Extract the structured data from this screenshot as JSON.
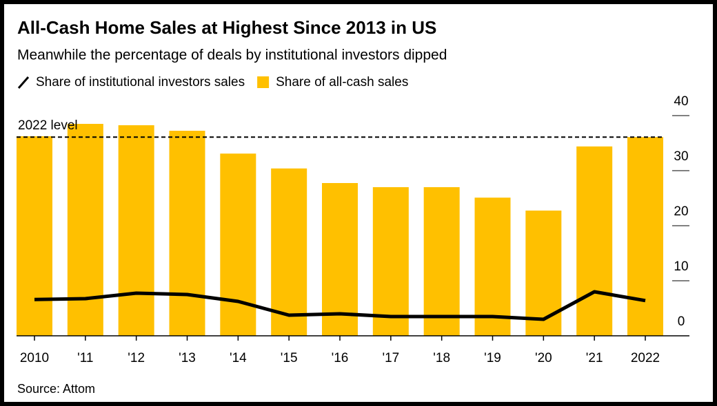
{
  "chart_data": {
    "type": "bar",
    "title": "All-Cash Home Sales at Highest Since 2013 in US",
    "subtitle": "Meanwhile the percentage of deals by institutional investors dipped",
    "categories": [
      "2010",
      "'11",
      "'12",
      "'13",
      "'14",
      "'15",
      "'16",
      "'17",
      "'18",
      "'19",
      "'20",
      "'21",
      "2022"
    ],
    "series": [
      {
        "name": "Share of institutional investors sales",
        "type": "line",
        "color": "#000000",
        "values": [
          6.6,
          6.75,
          7.75,
          7.5,
          6.25,
          3.75,
          4,
          3.5,
          3.5,
          3.5,
          3,
          8,
          6.4
        ]
      },
      {
        "name": "Share of all-cash sales",
        "type": "bar",
        "color": "#ffc000",
        "values": [
          36.25,
          38.5,
          38.25,
          37.25,
          33.1,
          30.4,
          27.75,
          27,
          27,
          25.1,
          22.75,
          34.4,
          36.1
        ]
      }
    ],
    "annotation": {
      "text": "2022 level",
      "value": 36.1
    },
    "ylim": [
      0,
      40
    ],
    "yticks": [
      0,
      10,
      20,
      30,
      40
    ],
    "y_axis_side": "right",
    "source": "Source: Attom"
  }
}
